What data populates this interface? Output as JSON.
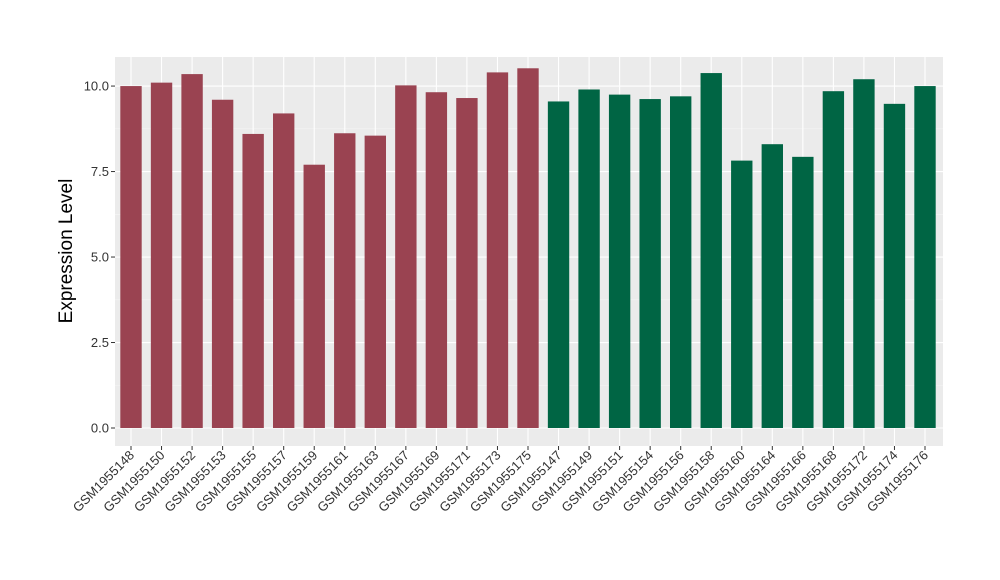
{
  "chart_data": {
    "type": "bar",
    "title": "",
    "xlabel": "",
    "ylabel": "Expression Level",
    "ylim": [
      0,
      10.85
    ],
    "yticks": [
      0.0,
      2.5,
      5.0,
      7.5,
      10.0
    ],
    "ytick_labels": [
      "0.0",
      "2.5",
      "5.0",
      "7.5",
      "10.0"
    ],
    "grid": true,
    "legend": "none",
    "background": "#ebebeb",
    "categories": [
      "GSM1955148",
      "GSM1955150",
      "GSM1955152",
      "GSM1955153",
      "GSM1955155",
      "GSM1955157",
      "GSM1955159",
      "GSM1955161",
      "GSM1955163",
      "GSM1955167",
      "GSM1955169",
      "GSM1955171",
      "GSM1955173",
      "GSM1955175",
      "GSM1955147",
      "GSM1955149",
      "GSM1955151",
      "GSM1955154",
      "GSM1955156",
      "GSM1955158",
      "GSM1955160",
      "GSM1955164",
      "GSM1955166",
      "GSM1955168",
      "GSM1955172",
      "GSM1955174",
      "GSM1955176"
    ],
    "values": [
      10.0,
      10.1,
      10.35,
      9.6,
      8.6,
      9.2,
      7.7,
      8.62,
      8.55,
      10.02,
      9.82,
      9.65,
      10.4,
      10.52,
      9.55,
      9.9,
      9.75,
      9.62,
      9.7,
      10.38,
      7.82,
      8.3,
      7.93,
      9.85,
      10.2,
      9.48,
      10.0
    ],
    "groups": [
      0,
      0,
      0,
      0,
      0,
      0,
      0,
      0,
      0,
      0,
      0,
      0,
      0,
      0,
      1,
      1,
      1,
      1,
      1,
      1,
      1,
      1,
      1,
      1,
      1,
      1,
      1
    ],
    "colors": [
      "#9a4351",
      "#006544"
    ]
  }
}
